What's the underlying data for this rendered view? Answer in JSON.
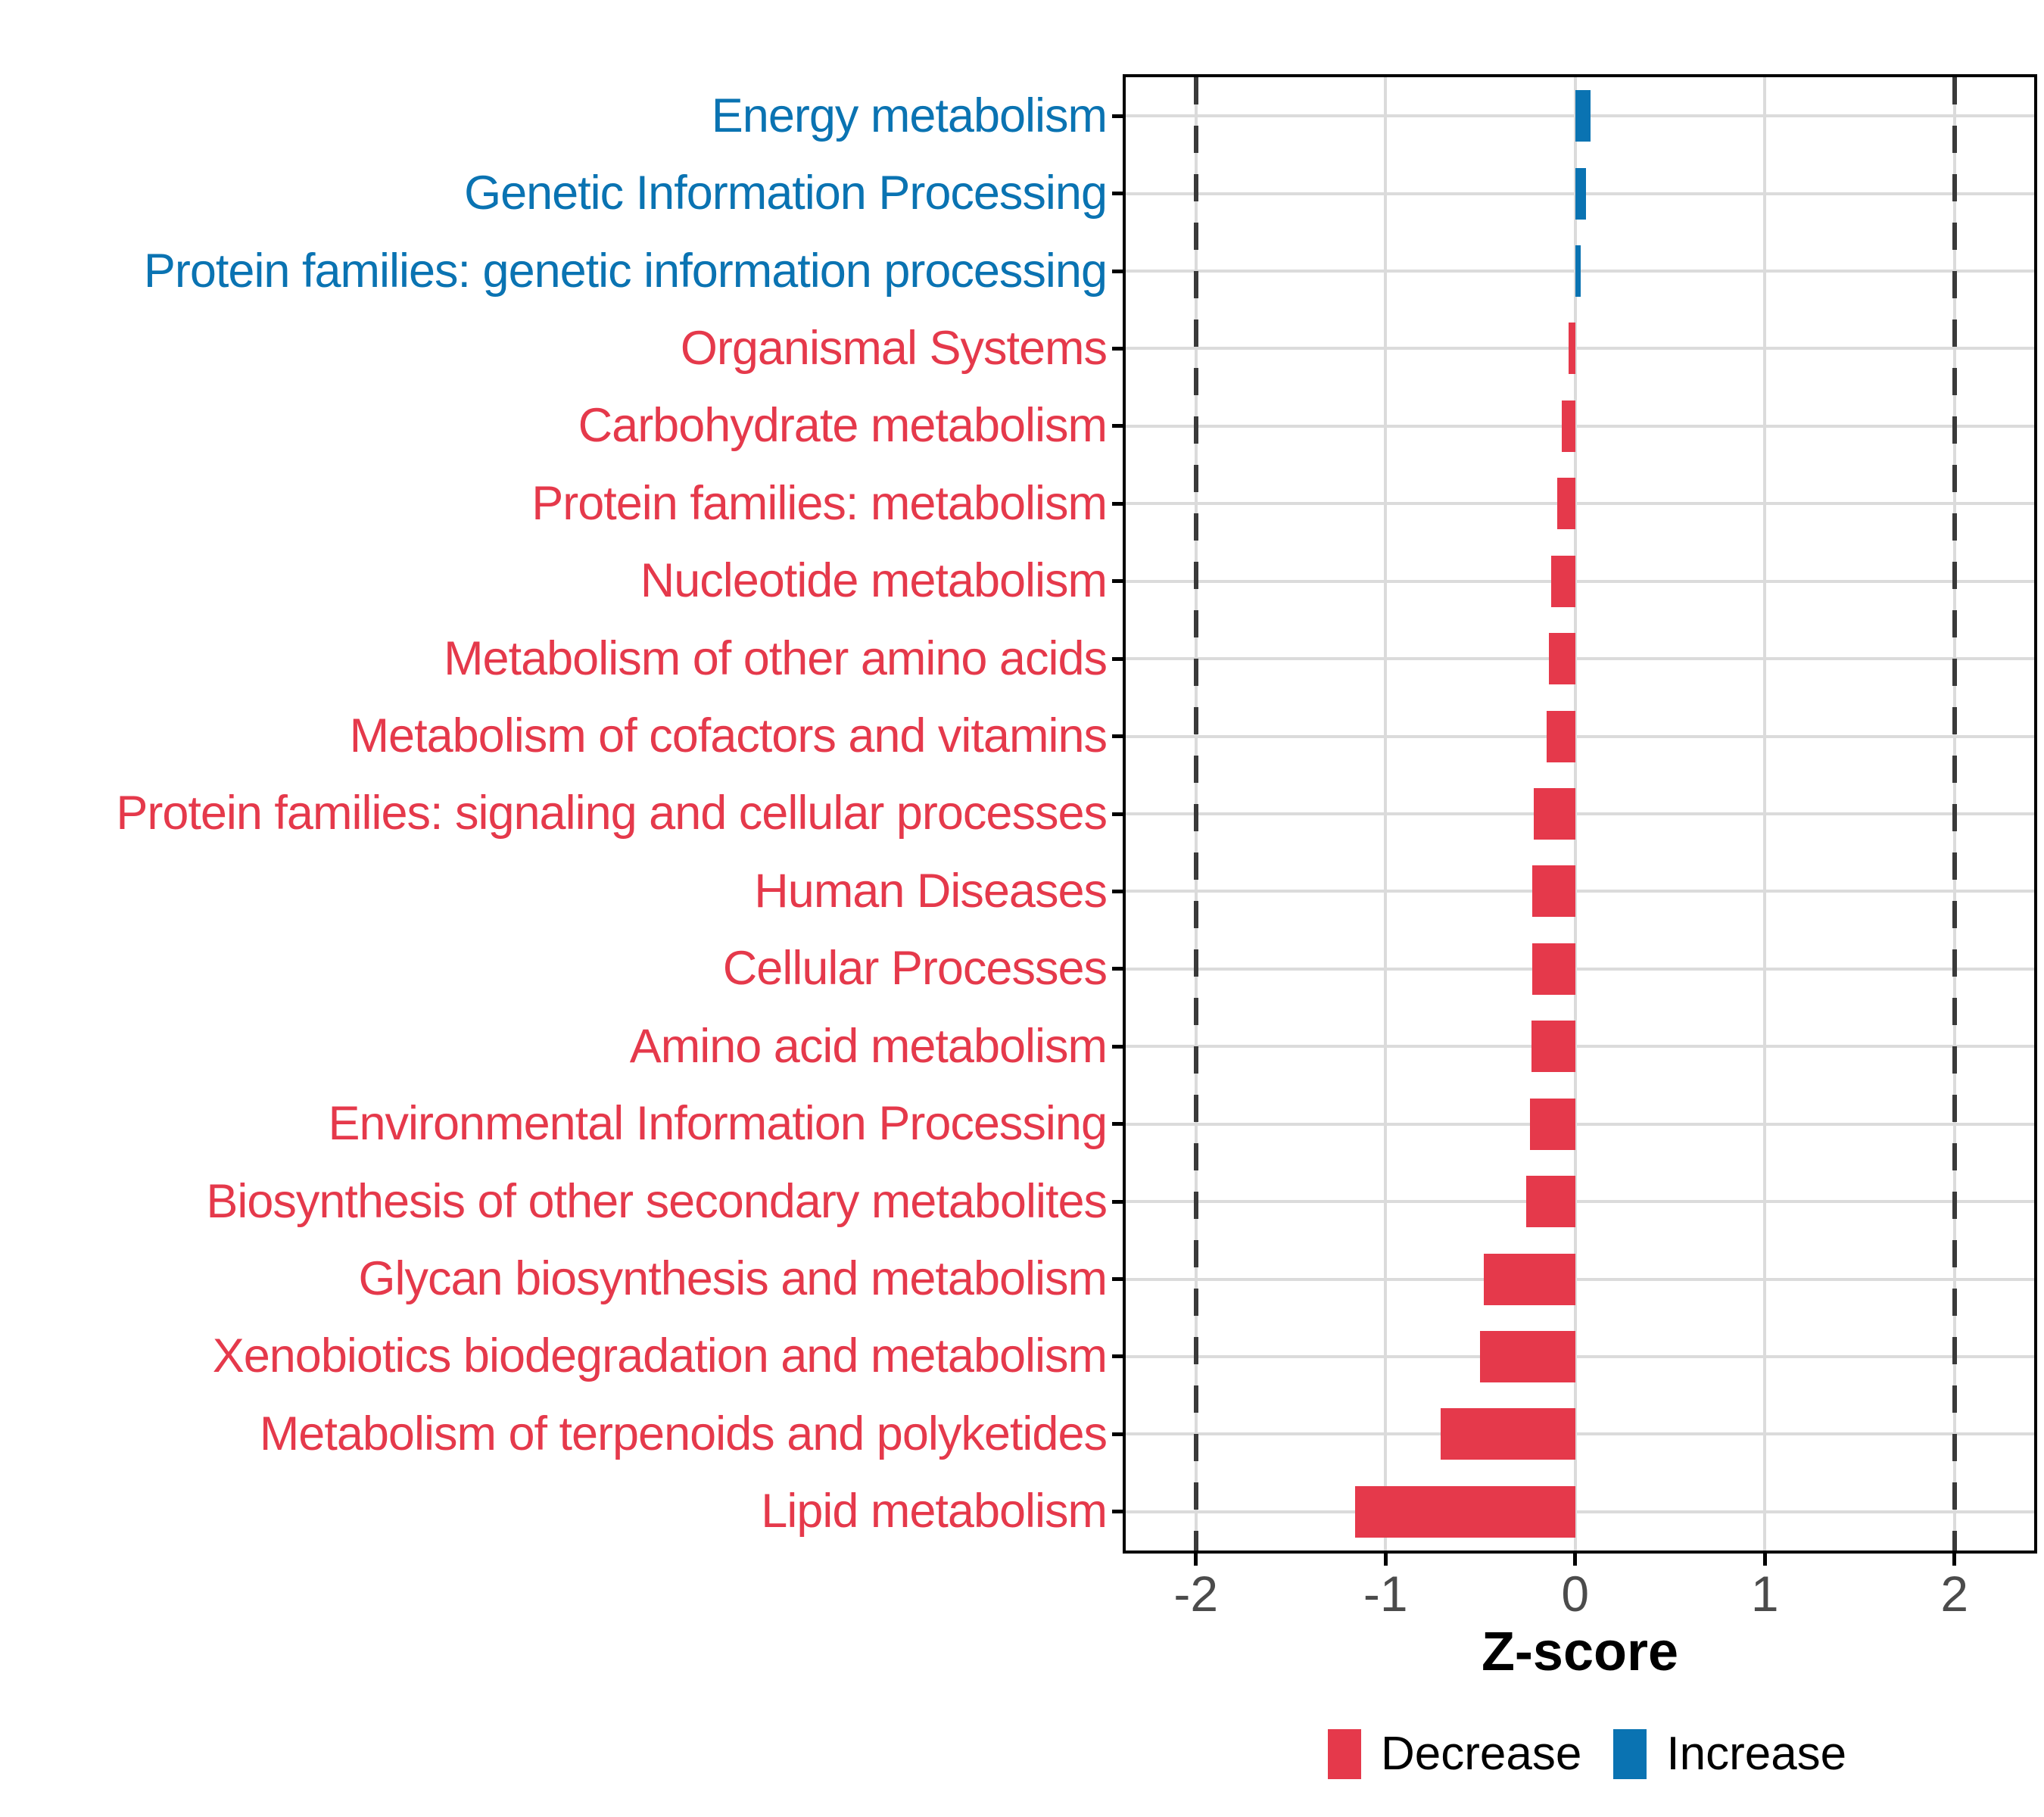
{
  "figure": {
    "background": "#ffffff"
  },
  "chart_data": {
    "type": "bar",
    "orientation": "horizontal",
    "title": "",
    "xlabel": "Z-score",
    "ylabel": "",
    "xlim": [
      -2.37,
      2.42
    ],
    "x_ticks": [
      {
        "value": -2,
        "label": "-2"
      },
      {
        "value": -1,
        "label": "-1"
      },
      {
        "value": 0,
        "label": "0"
      },
      {
        "value": 1,
        "label": "1"
      },
      {
        "value": 2,
        "label": "2"
      }
    ],
    "reference_lines": [
      -2,
      2
    ],
    "grid": true,
    "legend_position": "bottom",
    "colors": {
      "decrease": "#e5394b",
      "increase": "#0a73b2",
      "gridline": "#dbdbdb",
      "reference_line": "#3a3a3a",
      "axis_text": "#4b4b4b",
      "axis_line": "#000000"
    },
    "categories": [
      {
        "label": "Energy metabolism",
        "value": 0.08,
        "group": "increase"
      },
      {
        "label": "Genetic Information Processing",
        "value": 0.055,
        "group": "increase"
      },
      {
        "label": "Protein families: genetic information processing",
        "value": 0.03,
        "group": "increase"
      },
      {
        "label": "Organismal Systems",
        "value": -0.035,
        "group": "decrease"
      },
      {
        "label": "Carbohydrate metabolism",
        "value": -0.07,
        "group": "decrease"
      },
      {
        "label": "Protein families: metabolism",
        "value": -0.095,
        "group": "decrease"
      },
      {
        "label": "Nucleotide metabolism",
        "value": -0.125,
        "group": "decrease"
      },
      {
        "label": "Metabolism of other amino acids",
        "value": -0.14,
        "group": "decrease"
      },
      {
        "label": "Metabolism of cofactors and vitamins",
        "value": -0.15,
        "group": "decrease"
      },
      {
        "label": "Protein families: signaling and cellular processes",
        "value": -0.22,
        "group": "decrease"
      },
      {
        "label": "Human Diseases",
        "value": -0.225,
        "group": "decrease"
      },
      {
        "label": "Cellular Processes",
        "value": -0.225,
        "group": "decrease"
      },
      {
        "label": "Amino acid metabolism",
        "value": -0.23,
        "group": "decrease"
      },
      {
        "label": "Environmental Information Processing",
        "value": -0.24,
        "group": "decrease"
      },
      {
        "label": "Biosynthesis of other secondary metabolites",
        "value": -0.26,
        "group": "decrease"
      },
      {
        "label": "Glycan biosynthesis and metabolism",
        "value": -0.48,
        "group": "decrease"
      },
      {
        "label": "Xenobiotics biodegradation and metabolism",
        "value": -0.5,
        "group": "decrease"
      },
      {
        "label": "Metabolism of terpenoids and polyketides",
        "value": -0.71,
        "group": "decrease"
      },
      {
        "label": "Lipid metabolism",
        "value": -1.16,
        "group": "decrease"
      }
    ],
    "legend": [
      {
        "label": "Decrease",
        "group": "decrease"
      },
      {
        "label": "Increase",
        "group": "increase"
      }
    ]
  }
}
